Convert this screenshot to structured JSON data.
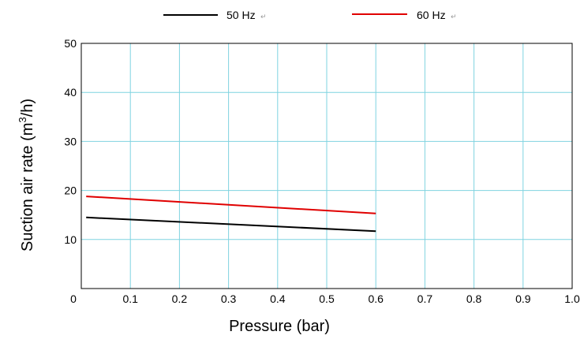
{
  "chart_data": {
    "type": "line",
    "title": "",
    "xlabel": "Pressure (bar)",
    "ylabel_main": "Suction air rate (m",
    "ylabel_sup": "3",
    "ylabel_tail": "/h)",
    "xlim": [
      0,
      1.0
    ],
    "ylim": [
      0,
      50
    ],
    "x_ticks": [
      "0",
      "0.1",
      "0.2",
      "0.3",
      "0.4",
      "0.5",
      "0.6",
      "0.7",
      "0.8",
      "0.9",
      "1.0"
    ],
    "x_tick_values": [
      0,
      0.1,
      0.2,
      0.3,
      0.4,
      0.5,
      0.6,
      0.7,
      0.8,
      0.9,
      1.0
    ],
    "y_ticks": [
      "10",
      "20",
      "30",
      "40",
      "50"
    ],
    "y_tick_values": [
      10,
      20,
      30,
      40,
      50
    ],
    "grid": true,
    "grid_color": "#7fd3e0",
    "legend_position": "top",
    "legend_mark": "↵",
    "series": [
      {
        "name": "50 Hz",
        "color": "#000000",
        "x": [
          0.01,
          0.6
        ],
        "y": [
          14.5,
          11.7
        ]
      },
      {
        "name": "60 Hz",
        "color": "#e00000",
        "x": [
          0.01,
          0.6
        ],
        "y": [
          18.8,
          15.3
        ]
      }
    ]
  }
}
